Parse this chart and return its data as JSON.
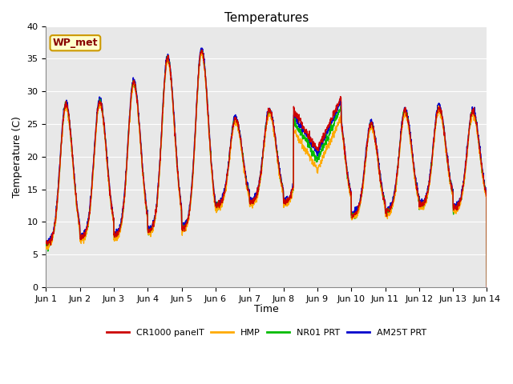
{
  "title": "Temperatures",
  "ylabel": "Temperature (C)",
  "xlabel": "Time",
  "ylim": [
    0,
    40
  ],
  "yticks": [
    0,
    5,
    10,
    15,
    20,
    25,
    30,
    35,
    40
  ],
  "x_tick_labels": [
    "Jun 1",
    "Jun 2",
    "Jun 3",
    "Jun 4",
    "Jun 5",
    "Jun 6",
    "Jun 7",
    "Jun 8",
    "Jun 9",
    "Jun 10",
    "Jun 11",
    "Jun 12",
    "Jun 13",
    "Jun 14"
  ],
  "background_color": "#e8e8e8",
  "wp_met_label": "WP_met",
  "wp_met_bg": "#ffffcc",
  "wp_met_border": "#cc9900",
  "wp_met_text_color": "#880000",
  "legend_entries": [
    "CR1000 panelT",
    "HMP",
    "NR01 PRT",
    "AM25T PRT"
  ],
  "line_colors": [
    "#cc0000",
    "#ffaa00",
    "#00bb00",
    "#0000cc"
  ],
  "title_fontsize": 11,
  "tick_fontsize": 8,
  "axis_label_fontsize": 9,
  "legend_fontsize": 8
}
